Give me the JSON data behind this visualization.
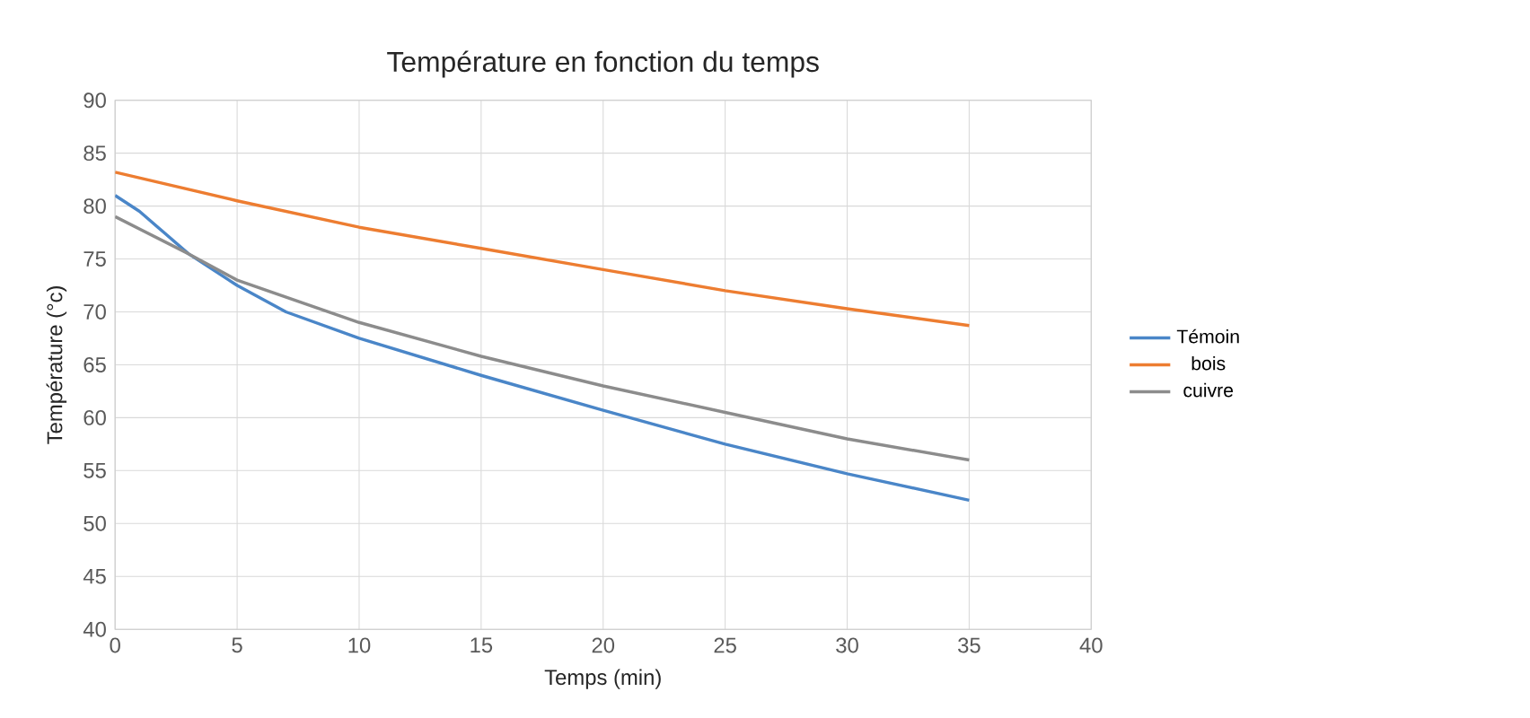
{
  "chart_data": {
    "type": "line",
    "title": "Température en fonction du temps",
    "xlabel": "Temps (min)",
    "ylabel": "Température (°c)",
    "xlim": [
      0,
      40
    ],
    "xticks": [
      0,
      5,
      10,
      15,
      20,
      25,
      30,
      35,
      40
    ],
    "ylim": [
      40,
      90
    ],
    "yticks": [
      40,
      45,
      50,
      55,
      60,
      65,
      70,
      75,
      80,
      85,
      90
    ],
    "grid": true,
    "legend": "right",
    "series": [
      {
        "name": "Témoin",
        "color": "#4a86c8",
        "x": [
          0,
          1,
          2,
          3,
          5,
          7,
          10,
          15,
          20,
          25,
          30,
          35
        ],
        "values": [
          81,
          79.5,
          77.5,
          75.5,
          72.5,
          70,
          67.5,
          64,
          60.7,
          57.5,
          54.7,
          52.2
        ]
      },
      {
        "name": "bois",
        "color": "#ed7d31",
        "x": [
          0,
          5,
          10,
          15,
          20,
          25,
          30,
          35
        ],
        "values": [
          83.2,
          80.5,
          78,
          76,
          74,
          72,
          70.3,
          68.7
        ]
      },
      {
        "name": "cuivre",
        "color": "#8c8c8c",
        "x": [
          0,
          3,
          5,
          10,
          15,
          20,
          25,
          30,
          35
        ],
        "values": [
          79,
          75.5,
          73,
          69,
          65.8,
          63,
          60.5,
          58,
          56
        ]
      }
    ]
  }
}
